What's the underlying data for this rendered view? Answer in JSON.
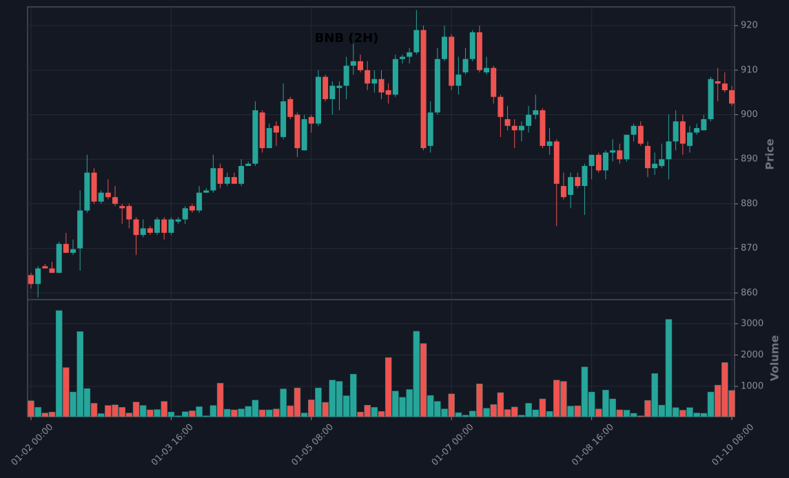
{
  "chart_data": {
    "type": "candlestick",
    "title": "BNB (2H)",
    "x": [
      "01-02 00:00",
      "01-02 02:00",
      "01-02 04:00",
      "01-02 06:00",
      "01-02 08:00",
      "01-02 10:00",
      "01-02 12:00",
      "01-02 14:00",
      "01-02 16:00",
      "01-02 18:00",
      "01-02 20:00",
      "01-02 22:00",
      "01-03 00:00",
      "01-03 02:00",
      "01-03 04:00",
      "01-03 06:00",
      "01-03 08:00",
      "01-03 10:00",
      "01-03 12:00",
      "01-03 14:00",
      "01-03 16:00",
      "01-03 18:00",
      "01-03 20:00",
      "01-03 22:00",
      "01-04 00:00",
      "01-04 02:00",
      "01-04 04:00",
      "01-04 06:00",
      "01-04 08:00",
      "01-04 10:00",
      "01-04 12:00",
      "01-04 14:00",
      "01-04 16:00",
      "01-04 18:00",
      "01-04 20:00",
      "01-04 22:00",
      "01-05 00:00",
      "01-05 02:00",
      "01-05 04:00",
      "01-05 06:00",
      "01-05 08:00",
      "01-05 10:00",
      "01-05 12:00",
      "01-05 14:00",
      "01-05 16:00",
      "01-05 18:00",
      "01-05 20:00",
      "01-05 22:00",
      "01-06 00:00",
      "01-06 02:00",
      "01-06 04:00",
      "01-06 06:00",
      "01-06 08:00",
      "01-06 10:00",
      "01-06 12:00",
      "01-06 14:00",
      "01-06 16:00",
      "01-06 18:00",
      "01-06 20:00",
      "01-06 22:00",
      "01-07 00:00",
      "01-07 02:00",
      "01-07 04:00",
      "01-07 06:00",
      "01-07 08:00",
      "01-07 10:00",
      "01-07 12:00",
      "01-07 14:00",
      "01-07 16:00",
      "01-07 18:00",
      "01-07 20:00",
      "01-07 22:00",
      "01-08 00:00",
      "01-08 02:00",
      "01-08 04:00",
      "01-08 06:00",
      "01-08 08:00",
      "01-08 10:00",
      "01-08 12:00",
      "01-08 14:00",
      "01-08 16:00",
      "01-08 18:00",
      "01-08 20:00",
      "01-08 22:00",
      "01-09 00:00",
      "01-09 02:00",
      "01-09 04:00",
      "01-09 06:00",
      "01-09 08:00",
      "01-09 10:00",
      "01-09 12:00",
      "01-09 14:00",
      "01-09 16:00",
      "01-09 18:00",
      "01-09 20:00",
      "01-09 22:00",
      "01-10 00:00",
      "01-10 02:00",
      "01-10 04:00",
      "01-10 06:00",
      "01-10 08:00"
    ],
    "xticks": [
      "01-02 00:00",
      "01-03 16:00",
      "01-05 08:00",
      "01-07 00:00",
      "01-08 16:00",
      "01-10 08:00"
    ],
    "open": [
      864,
      862,
      866,
      865.5,
      864.5,
      871,
      869,
      870,
      878.5,
      887,
      880.5,
      882.5,
      881.5,
      879.5,
      879.5,
      876.5,
      873,
      874.5,
      873.5,
      876.5,
      873.5,
      876,
      876.5,
      879.5,
      878.5,
      882.5,
      883,
      888,
      884.5,
      886,
      884.5,
      888.5,
      889,
      900.5,
      892.5,
      897.5,
      895,
      903.5,
      900,
      892,
      899.5,
      898,
      908.5,
      903.5,
      906,
      906.5,
      911,
      912,
      910,
      907,
      908,
      905.5,
      904.5,
      912.5,
      913,
      914,
      919,
      893,
      900.5,
      912.5,
      917.5,
      906.5,
      909.5,
      912.5,
      918.5,
      909.5,
      910.5,
      904,
      899,
      897.5,
      896.5,
      897.5,
      900,
      901,
      893,
      894,
      884,
      882,
      886,
      884,
      888.5,
      891,
      887.5,
      891.5,
      892,
      890,
      895.5,
      897.5,
      893,
      888,
      888.5,
      890,
      894,
      898.5,
      893,
      896,
      896.5,
      899,
      907.5,
      907,
      905.5
    ],
    "high": [
      864.5,
      866,
      866.5,
      867,
      871.5,
      873.5,
      872,
      883,
      891,
      888,
      883,
      885.5,
      884,
      880,
      880,
      877,
      876.5,
      875,
      877,
      877,
      877,
      877,
      879.5,
      880,
      884,
      883.5,
      891,
      889,
      887,
      887,
      890,
      889.5,
      903,
      901,
      898,
      898.5,
      907,
      904,
      900.5,
      900,
      900,
      910,
      909,
      907.5,
      907.5,
      913,
      916,
      913.5,
      912,
      910,
      910,
      907,
      913.5,
      913.5,
      915,
      923.5,
      920,
      903,
      915,
      920,
      918,
      913,
      915,
      919,
      920,
      913,
      911,
      904.5,
      902,
      899,
      898.5,
      902,
      904.5,
      901.5,
      897,
      894.5,
      887,
      887,
      887,
      889,
      891,
      891.5,
      892,
      894.5,
      893.5,
      895.5,
      898,
      898.5,
      894,
      891.5,
      893.5,
      900,
      901,
      900,
      897.5,
      898,
      900,
      908.5,
      910.5,
      909.5,
      906.5
    ],
    "low": [
      861,
      859,
      865.5,
      864.5,
      864.5,
      869,
      868.5,
      865,
      878,
      880,
      880,
      881,
      879.5,
      875.5,
      874.5,
      868.5,
      872.5,
      873,
      873,
      872,
      873,
      875.5,
      875.5,
      878,
      878,
      882.5,
      882.5,
      883.5,
      884,
      884.5,
      884,
      888.5,
      888.5,
      891.5,
      892.5,
      893,
      894.5,
      899,
      890.5,
      892,
      896,
      897.5,
      903,
      900,
      901,
      903.5,
      909,
      909.5,
      905.5,
      905,
      903.5,
      902.5,
      904,
      911.5,
      911.5,
      913.5,
      892,
      891.5,
      900,
      912,
      905.5,
      904.5,
      909,
      912,
      909.5,
      909,
      902.5,
      895,
      896.5,
      892.5,
      894,
      896,
      899,
      892.5,
      891,
      875,
      881,
      879,
      883.5,
      877.5,
      885.5,
      887,
      885.5,
      889.5,
      889,
      889.5,
      894,
      893,
      886,
      886.5,
      888,
      885.5,
      892,
      891,
      891.5,
      895.5,
      896.5,
      898.5,
      903,
      905,
      902
    ],
    "close": [
      862,
      865.5,
      865.5,
      864.5,
      871,
      869,
      869.8,
      878.5,
      887,
      880.5,
      882.5,
      881.5,
      880,
      879,
      876.5,
      873,
      874.5,
      873.5,
      876.5,
      873.5,
      876.5,
      876.5,
      879,
      878.5,
      882.5,
      883,
      888,
      884.5,
      886,
      884.5,
      888.5,
      889,
      901,
      892.5,
      897,
      896,
      903,
      899.5,
      892.5,
      899,
      898,
      908.5,
      903.5,
      906.5,
      906.5,
      911,
      912,
      910,
      907,
      908,
      905,
      904.5,
      912.5,
      913,
      914,
      919,
      892.5,
      900.5,
      912.5,
      917.5,
      906.5,
      909,
      912.5,
      918.5,
      910,
      910.5,
      904,
      899.5,
      897.5,
      896.5,
      897.5,
      900,
      901,
      893,
      894,
      884.5,
      881.5,
      886,
      884,
      888.5,
      891,
      887.5,
      891.5,
      892,
      890,
      895.5,
      897.5,
      893.5,
      888,
      889,
      890,
      894,
      898.5,
      893.5,
      896,
      897,
      899,
      908,
      907,
      905.5,
      902.5
    ],
    "volume": [
      540,
      330,
      150,
      180,
      3420,
      1600,
      820,
      2750,
      930,
      460,
      130,
      390,
      410,
      330,
      150,
      500,
      390,
      250,
      260,
      520,
      180,
      60,
      190,
      220,
      350,
      60,
      390,
      1100,
      270,
      250,
      280,
      360,
      560,
      250,
      250,
      280,
      920,
      380,
      950,
      150,
      570,
      950,
      490,
      1200,
      1160,
      700,
      1390,
      180,
      400,
      330,
      200,
      1920,
      850,
      650,
      900,
      2760,
      2370,
      710,
      520,
      280,
      760,
      160,
      80,
      210,
      1080,
      300,
      420,
      800,
      260,
      340,
      80,
      460,
      250,
      600,
      200,
      1200,
      1160,
      370,
      380,
      1620,
      820,
      280,
      880,
      600,
      250,
      240,
      140,
      60,
      550,
      1410,
      400,
      3140,
      320,
      240,
      320,
      150,
      140,
      820,
      1040,
      1760,
      870
    ],
    "up_color": "#26a69a",
    "down_color": "#ef5350",
    "ylabel": "Price",
    "ylim": [
      858.5,
      924.2
    ],
    "yticks": [
      860,
      870,
      880,
      890,
      900,
      910,
      920
    ],
    "volume_label": "Volume",
    "volume_ylim": [
      30,
      3770
    ],
    "volume_yticks": [
      1000,
      2000,
      3000
    ],
    "grid": true
  }
}
